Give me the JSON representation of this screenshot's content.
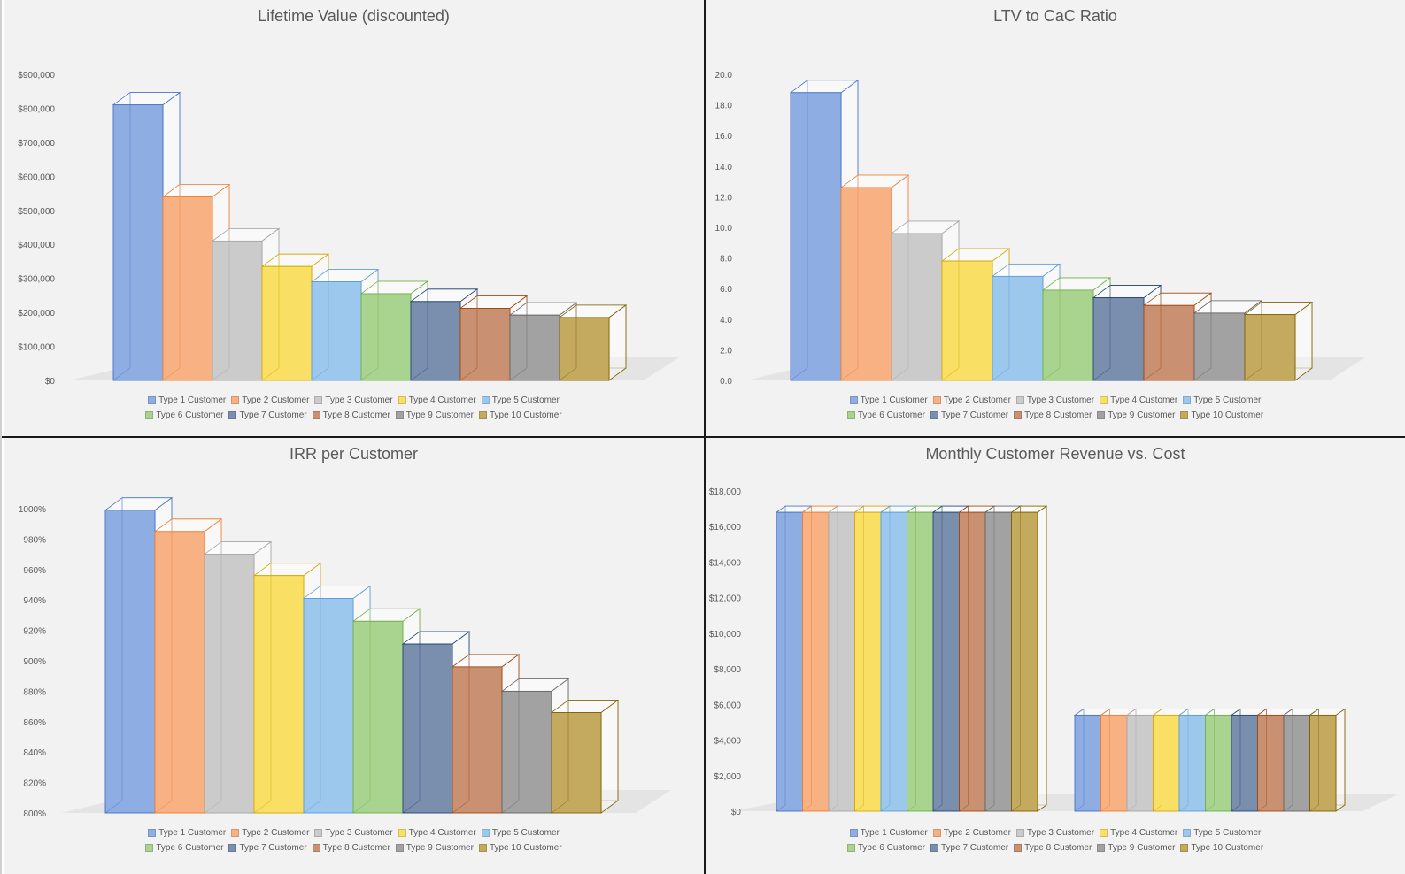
{
  "legend_labels": [
    "Type 1 Customer",
    "Type 2 Customer",
    "Type 3 Customer",
    "Type 4 Customer",
    "Type 5 Customer",
    "Type 6 Customer",
    "Type 7 Customer",
    "Type 8 Customer",
    "Type 9 Customer",
    "Type 10 Customer"
  ],
  "colors": {
    "fills": [
      "#8eaee3",
      "#f8b183",
      "#cbcbcb",
      "#fadf65",
      "#9dc8ee",
      "#a8d48f",
      "#7a8fae",
      "#c99071",
      "#a2a2a2",
      "#c4aa5f"
    ],
    "edges": [
      "#4472c4",
      "#ed7d31",
      "#a5a5a5",
      "#d4a700",
      "#5b9bd5",
      "#70ad47",
      "#264478",
      "#9e480e",
      "#636363",
      "#7f6000"
    ],
    "panel_bg": "#f2f2f2",
    "text": "#595959"
  },
  "chart_data": [
    {
      "type": "bar",
      "title": "Lifetime Value (discounted)",
      "ylim": [
        0,
        900000
      ],
      "ticks": [
        0,
        100000,
        200000,
        300000,
        400000,
        500000,
        600000,
        700000,
        800000,
        900000
      ],
      "tick_labels": [
        "$0",
        "$100,000",
        "$200,000",
        "$300,000",
        "$400,000",
        "$500,000",
        "$600,000",
        "$700,000",
        "$800,000",
        "$900,000"
      ],
      "series": [
        {
          "name": "Type 1 Customer",
          "values": [
            810000
          ]
        },
        {
          "name": "Type 2 Customer",
          "values": [
            540000
          ]
        },
        {
          "name": "Type 3 Customer",
          "values": [
            410000
          ]
        },
        {
          "name": "Type 4 Customer",
          "values": [
            335000
          ]
        },
        {
          "name": "Type 5 Customer",
          "values": [
            290000
          ]
        },
        {
          "name": "Type 6 Customer",
          "values": [
            255000
          ]
        },
        {
          "name": "Type 7 Customer",
          "values": [
            232000
          ]
        },
        {
          "name": "Type 8 Customer",
          "values": [
            212000
          ]
        },
        {
          "name": "Type 9 Customer",
          "values": [
            192000
          ]
        },
        {
          "name": "Type 10 Customer",
          "values": [
            185000
          ]
        }
      ]
    },
    {
      "type": "bar",
      "title": "LTV to CaC Ratio",
      "ylim": [
        0,
        20
      ],
      "ticks": [
        0,
        2,
        4,
        6,
        8,
        10,
        12,
        14,
        16,
        18,
        20
      ],
      "tick_labels": [
        "0.0",
        "2.0",
        "4.0",
        "6.0",
        "8.0",
        "10.0",
        "12.0",
        "14.0",
        "16.0",
        "18.0",
        "20.0"
      ],
      "series": [
        {
          "name": "Type 1 Customer",
          "values": [
            18.8
          ]
        },
        {
          "name": "Type 2 Customer",
          "values": [
            12.6
          ]
        },
        {
          "name": "Type 3 Customer",
          "values": [
            9.6
          ]
        },
        {
          "name": "Type 4 Customer",
          "values": [
            7.8
          ]
        },
        {
          "name": "Type 5 Customer",
          "values": [
            6.8
          ]
        },
        {
          "name": "Type 6 Customer",
          "values": [
            5.9
          ]
        },
        {
          "name": "Type 7 Customer",
          "values": [
            5.4
          ]
        },
        {
          "name": "Type 8 Customer",
          "values": [
            4.9
          ]
        },
        {
          "name": "Type 9 Customer",
          "values": [
            4.4
          ]
        },
        {
          "name": "Type 10 Customer",
          "values": [
            4.3
          ]
        }
      ]
    },
    {
      "type": "bar",
      "title": "IRR per Customer",
      "ylim": [
        800,
        1000
      ],
      "ticks": [
        800,
        820,
        840,
        860,
        880,
        900,
        920,
        940,
        960,
        980,
        1000
      ],
      "tick_labels": [
        "800%",
        "820%",
        "840%",
        "860%",
        "880%",
        "900%",
        "920%",
        "940%",
        "960%",
        "980%",
        "1000%"
      ],
      "series": [
        {
          "name": "Type 1 Customer",
          "values": [
            999
          ]
        },
        {
          "name": "Type 2 Customer",
          "values": [
            985
          ]
        },
        {
          "name": "Type 3 Customer",
          "values": [
            970
          ]
        },
        {
          "name": "Type 4 Customer",
          "values": [
            956
          ]
        },
        {
          "name": "Type 5 Customer",
          "values": [
            941
          ]
        },
        {
          "name": "Type 6 Customer",
          "values": [
            926
          ]
        },
        {
          "name": "Type 7 Customer",
          "values": [
            911
          ]
        },
        {
          "name": "Type 8 Customer",
          "values": [
            896
          ]
        },
        {
          "name": "Type 9 Customer",
          "values": [
            880
          ]
        },
        {
          "name": "Type 10 Customer",
          "values": [
            866
          ]
        }
      ]
    },
    {
      "type": "bar",
      "title": "Monthly Customer Revenue vs. Cost",
      "ylim": [
        0,
        18000
      ],
      "ticks": [
        0,
        2000,
        4000,
        6000,
        8000,
        10000,
        12000,
        14000,
        16000,
        18000
      ],
      "tick_labels": [
        "$0",
        "$2,000",
        "$4,000",
        "$6,000",
        "$8,000",
        "$10,000",
        "$12,000",
        "$14,000",
        "$16,000",
        "$18,000"
      ],
      "series": [
        {
          "name": "Type 1 Customer",
          "values": [
            16800,
            5400
          ]
        },
        {
          "name": "Type 2 Customer",
          "values": [
            16800,
            5400
          ]
        },
        {
          "name": "Type 3 Customer",
          "values": [
            16800,
            5400
          ]
        },
        {
          "name": "Type 4 Customer",
          "values": [
            16800,
            5400
          ]
        },
        {
          "name": "Type 5 Customer",
          "values": [
            16800,
            5400
          ]
        },
        {
          "name": "Type 6 Customer",
          "values": [
            16800,
            5400
          ]
        },
        {
          "name": "Type 7 Customer",
          "values": [
            16800,
            5400
          ]
        },
        {
          "name": "Type 8 Customer",
          "values": [
            16800,
            5400
          ]
        },
        {
          "name": "Type 9 Customer",
          "values": [
            16800,
            5400
          ]
        },
        {
          "name": "Type 10 Customer",
          "values": [
            16800,
            5400
          ]
        }
      ]
    }
  ]
}
